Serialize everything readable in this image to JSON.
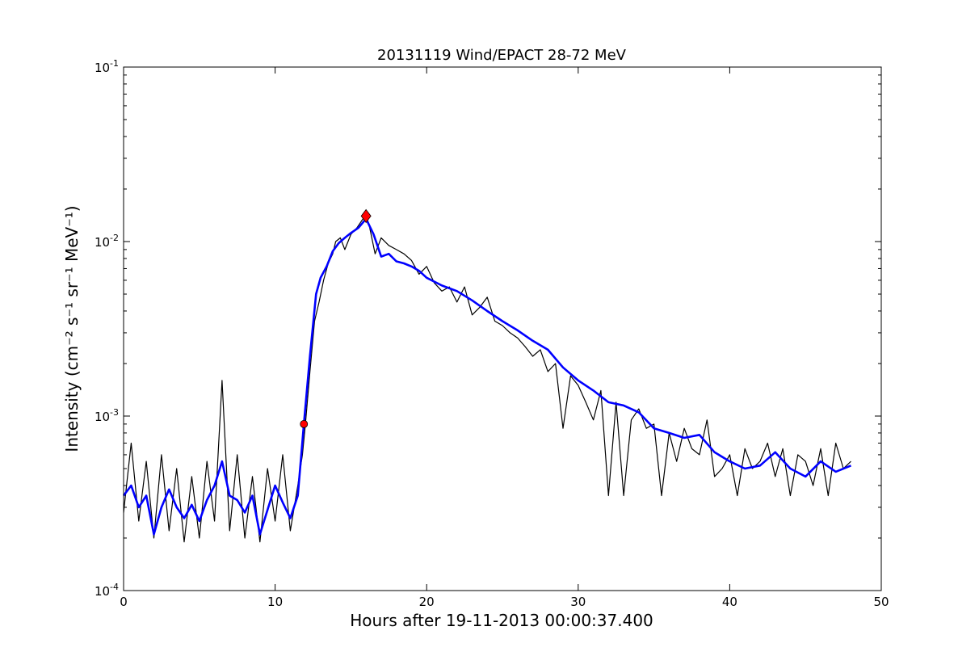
{
  "chart_data": {
    "type": "line",
    "title": "20131119 Wind/EPACT 28-72 MeV",
    "xlabel": "Hours after 19-11-2013 00:00:37.400",
    "ylabel": "Intensity (cm⁻² s⁻¹ sr⁻¹ MeV⁻¹)",
    "xlim": [
      0,
      50
    ],
    "ylim": [
      0.0001,
      0.1
    ],
    "yscale": "log",
    "grid": false,
    "x_ticks": [
      0,
      10,
      20,
      30,
      40,
      50
    ],
    "x_tick_labels": [
      "0",
      "10",
      "20",
      "30",
      "40",
      "50"
    ],
    "y_ticks": [
      0.0001,
      0.001,
      0.01,
      0.1
    ],
    "y_tick_labels": [
      {
        "base": "10",
        "exp": "-4"
      },
      {
        "base": "10",
        "exp": "-3"
      },
      {
        "base": "10",
        "exp": "-2"
      },
      {
        "base": "10",
        "exp": "-1"
      }
    ],
    "series": [
      {
        "role": "raw intensity",
        "color": "#000000",
        "x": [
          0,
          0.5,
          1,
          1.5,
          2,
          2.5,
          3,
          3.5,
          4,
          4.5,
          5,
          5.5,
          6,
          6.5,
          7,
          7.5,
          8,
          8.5,
          9,
          9.5,
          10,
          10.5,
          11,
          11.5,
          11.8,
          12,
          12.3,
          12.6,
          12.9,
          13.2,
          13.5,
          13.8,
          14,
          14.3,
          14.6,
          15,
          15.4,
          15.8,
          16,
          16.2,
          16.6,
          17,
          17.5,
          18,
          18.5,
          19,
          19.5,
          20,
          20.5,
          21,
          21.5,
          22,
          22.5,
          23,
          23.5,
          24,
          24.5,
          25,
          25.5,
          26,
          26.5,
          27,
          27.5,
          28,
          28.5,
          29,
          29.5,
          30,
          30.5,
          31,
          31.5,
          32,
          32.5,
          33,
          33.5,
          34,
          34.5,
          35,
          35.5,
          36,
          36.5,
          37,
          37.5,
          38,
          38.5,
          39,
          39.5,
          40,
          40.5,
          41,
          41.5,
          42,
          42.5,
          43,
          43.5,
          44,
          44.5,
          45,
          45.5,
          46,
          46.5,
          47,
          47.5,
          48
        ],
        "y": [
          0.00028,
          0.0007,
          0.00025,
          0.00055,
          0.0002,
          0.0006,
          0.00022,
          0.0005,
          0.00019,
          0.00045,
          0.0002,
          0.00055,
          0.00025,
          0.0016,
          0.00022,
          0.0006,
          0.0002,
          0.00045,
          0.00019,
          0.0005,
          0.00025,
          0.0006,
          0.00022,
          0.0004,
          0.0006,
          0.0009,
          0.0018,
          0.0035,
          0.0045,
          0.006,
          0.0075,
          0.0085,
          0.01,
          0.0105,
          0.009,
          0.011,
          0.012,
          0.0135,
          0.014,
          0.0125,
          0.0085,
          0.0105,
          0.0095,
          0.009,
          0.0085,
          0.0078,
          0.0065,
          0.0072,
          0.0058,
          0.0052,
          0.0055,
          0.0045,
          0.0055,
          0.0038,
          0.0042,
          0.0048,
          0.0035,
          0.0033,
          0.003,
          0.0028,
          0.0025,
          0.0022,
          0.0024,
          0.0018,
          0.002,
          0.00085,
          0.0017,
          0.0015,
          0.0012,
          0.00095,
          0.0014,
          0.00035,
          0.0012,
          0.00035,
          0.00095,
          0.0011,
          0.00085,
          0.0009,
          0.00035,
          0.0008,
          0.00055,
          0.00085,
          0.00065,
          0.0006,
          0.00095,
          0.00045,
          0.0005,
          0.0006,
          0.00035,
          0.00065,
          0.0005,
          0.00055,
          0.0007,
          0.00045,
          0.00065,
          0.00035,
          0.0006,
          0.00055,
          0.0004,
          0.00065,
          0.00035,
          0.0007,
          0.0005,
          0.00055
        ]
      },
      {
        "role": "smoothed intensity",
        "color": "#0000ff",
        "x": [
          0,
          0.5,
          1,
          1.5,
          2,
          2.5,
          3,
          3.5,
          4,
          4.5,
          5,
          5.5,
          6,
          6.5,
          7,
          7.5,
          8,
          8.5,
          9,
          9.5,
          10,
          10.5,
          11,
          11.5,
          11.9,
          12.3,
          12.7,
          13,
          13.4,
          13.8,
          14.2,
          14.6,
          15,
          15.5,
          16,
          16.5,
          17,
          17.5,
          18,
          18.5,
          19,
          19.5,
          20,
          21,
          22,
          23,
          24,
          25,
          26,
          27,
          28,
          29,
          30,
          31,
          32,
          33,
          34,
          35,
          36,
          37,
          38,
          39,
          40,
          41,
          42,
          43,
          44,
          45,
          46,
          47,
          48
        ],
        "y": [
          0.00035,
          0.0004,
          0.0003,
          0.00035,
          0.00021,
          0.0003,
          0.00038,
          0.0003,
          0.00026,
          0.00031,
          0.00025,
          0.00033,
          0.0004,
          0.00055,
          0.00035,
          0.00033,
          0.00028,
          0.00035,
          0.00021,
          0.00029,
          0.0004,
          0.00032,
          0.00026,
          0.00035,
          0.0009,
          0.0022,
          0.005,
          0.0062,
          0.0072,
          0.0088,
          0.0098,
          0.0105,
          0.0112,
          0.012,
          0.0135,
          0.011,
          0.0082,
          0.0085,
          0.0077,
          0.0075,
          0.0072,
          0.0068,
          0.0062,
          0.0056,
          0.0052,
          0.0046,
          0.004,
          0.0035,
          0.0031,
          0.0027,
          0.0024,
          0.0019,
          0.0016,
          0.0014,
          0.0012,
          0.00115,
          0.00105,
          0.00085,
          0.0008,
          0.00075,
          0.00078,
          0.00062,
          0.00055,
          0.0005,
          0.00052,
          0.00062,
          0.0005,
          0.00045,
          0.00055,
          0.00048,
          0.00052
        ]
      }
    ],
    "markers": [
      {
        "role": "onset",
        "x": 11.9,
        "y": 0.0009,
        "color": "#ff0000",
        "shape": "circle"
      },
      {
        "role": "peak",
        "x": 16.0,
        "y": 0.014,
        "color": "#ff0000",
        "shape": "diamond"
      }
    ]
  }
}
